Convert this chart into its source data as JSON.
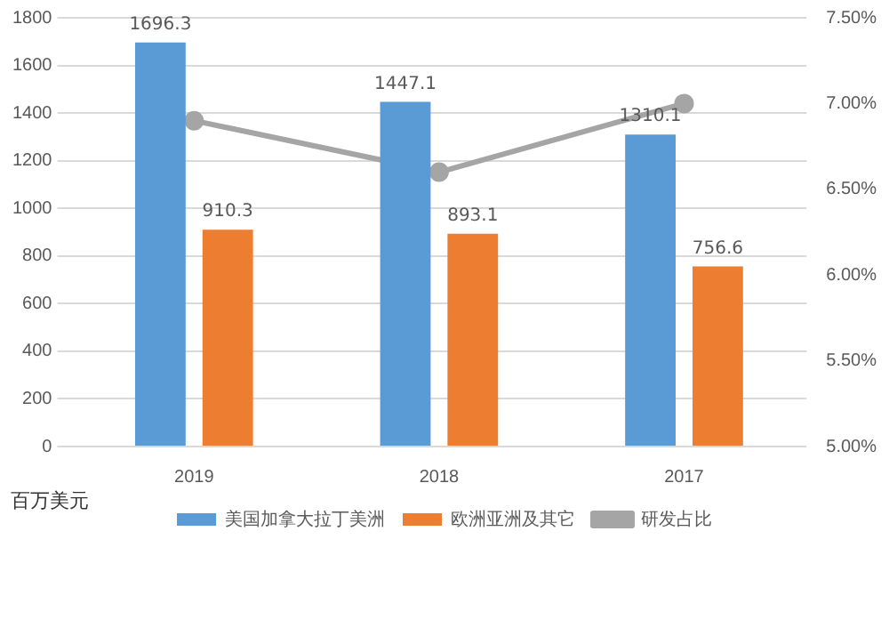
{
  "chart_data": {
    "type": "bar",
    "ylabel": "百万美元",
    "categories": [
      "2019",
      "2018",
      "2017"
    ],
    "series": [
      {
        "name": "美国加拿大拉丁美洲",
        "color": "#5b9bd5",
        "values": [
          1696.3,
          1447.1,
          1310.1
        ],
        "value_labels": [
          "1696.3",
          "1447.1",
          "1310.1"
        ]
      },
      {
        "name": "欧洲亚洲及其它",
        "color": "#ed7d31",
        "values": [
          910.3,
          893.1,
          756.6
        ],
        "value_labels": [
          "910.3",
          "893.1",
          "756.6"
        ]
      },
      {
        "name": "研发占比",
        "type": "line",
        "axis": "y2",
        "color": "#a5a5a5",
        "values": [
          6.9,
          6.6,
          7.0
        ]
      }
    ],
    "ylim": [
      0,
      1800
    ],
    "yticks": [
      0,
      200,
      400,
      600,
      800,
      1000,
      1200,
      1400,
      1600,
      1800
    ],
    "y2lim": [
      5,
      7.5
    ],
    "y2ticks": [
      {
        "value": 5,
        "label": "5.00%"
      },
      {
        "value": 5.5,
        "label": "5.50%"
      },
      {
        "value": 6,
        "label": "6.00%"
      },
      {
        "value": 6.5,
        "label": "6.50%"
      },
      {
        "value": 7,
        "label": "7.00%"
      },
      {
        "value": 7.5,
        "label": "7.50%"
      }
    ],
    "grid": "y",
    "legend": "bottom",
    "marker": "circle"
  }
}
